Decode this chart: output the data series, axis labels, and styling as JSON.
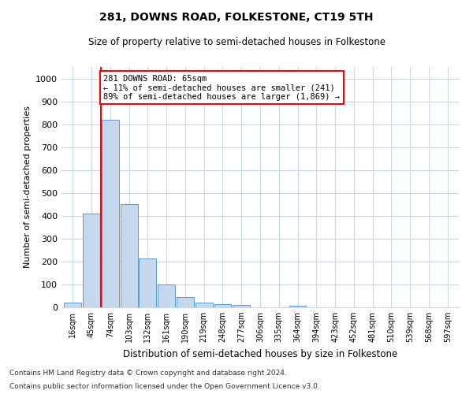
{
  "title": "281, DOWNS ROAD, FOLKESTONE, CT19 5TH",
  "subtitle": "Size of property relative to semi-detached houses in Folkestone",
  "xlabel": "Distribution of semi-detached houses by size in Folkestone",
  "ylabel": "Number of semi-detached properties",
  "bar_labels": [
    "16sqm",
    "45sqm",
    "74sqm",
    "103sqm",
    "132sqm",
    "161sqm",
    "190sqm",
    "219sqm",
    "248sqm",
    "277sqm",
    "306sqm",
    "335sqm",
    "364sqm",
    "394sqm",
    "423sqm",
    "452sqm",
    "481sqm",
    "510sqm",
    "539sqm",
    "568sqm",
    "597sqm"
  ],
  "bar_values": [
    22,
    410,
    820,
    450,
    215,
    100,
    45,
    20,
    15,
    10,
    0,
    0,
    8,
    0,
    0,
    0,
    0,
    0,
    0,
    0,
    0
  ],
  "bar_color": "#c5d8ed",
  "bar_edge_color": "#5b9bd5",
  "vline_x_index": 1.5,
  "annotation_title": "281 DOWNS ROAD: 65sqm",
  "annotation_line1": "← 11% of semi-detached houses are smaller (241)",
  "annotation_line2": "89% of semi-detached houses are larger (1,869) →",
  "ylim": [
    0,
    1050
  ],
  "yticks": [
    0,
    100,
    200,
    300,
    400,
    500,
    600,
    700,
    800,
    900,
    1000
  ],
  "footnote1": "Contains HM Land Registry data © Crown copyright and database right 2024.",
  "footnote2": "Contains public sector information licensed under the Open Government Licence v3.0.",
  "bg_color": "#ffffff",
  "grid_color": "#c8d8ea"
}
